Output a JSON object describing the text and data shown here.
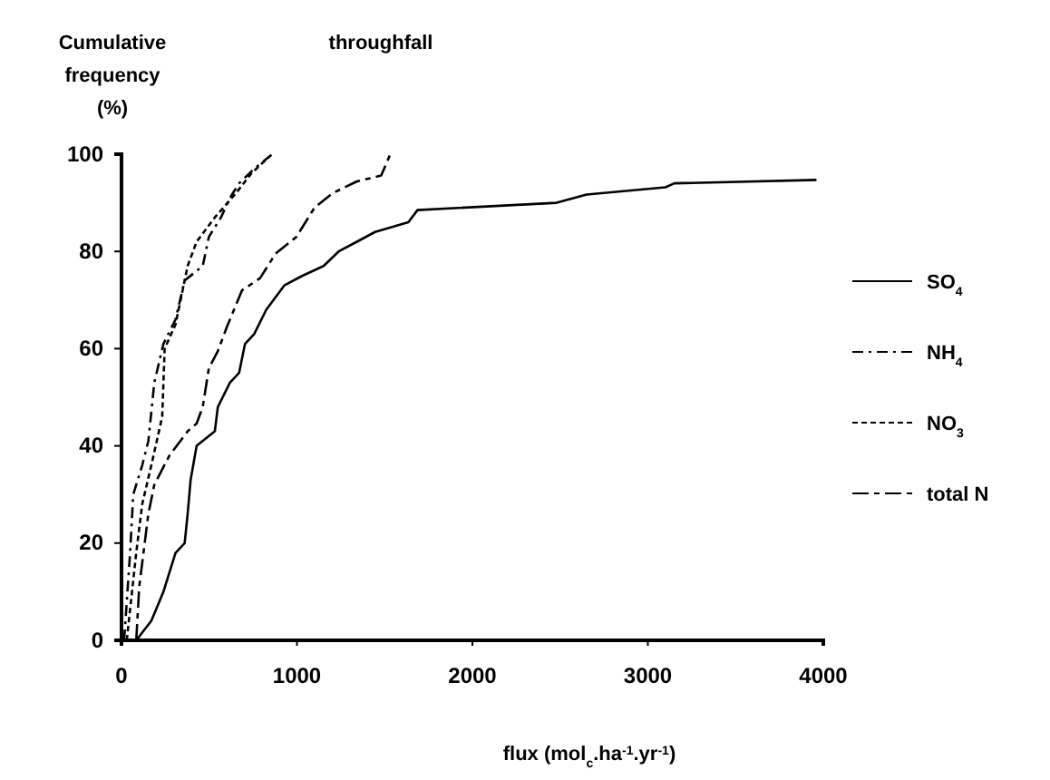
{
  "chart_data": {
    "type": "line",
    "title": "throughfall",
    "xlabel": "flux (mol$_{c}$.ha$^{-1}$.yr$^{-1}$)",
    "ylabel": "Cumulative frequency (%)",
    "xlim": [
      0,
      4000
    ],
    "xticks": [
      0,
      1000,
      2000,
      3000,
      4000
    ],
    "ylim": [
      0,
      100
    ],
    "yticks": [
      0,
      20,
      40,
      60,
      80,
      100
    ],
    "grid": false,
    "legend": "right",
    "marker": "none",
    "series": [
      {
        "name": "SO$_{4}$",
        "color": "#000000",
        "line_style": "solid",
        "x": [
          84,
          170,
          239,
          308,
          360,
          377,
          394,
          428,
          532,
          549,
          618,
          670,
          704,
          756,
          825,
          928,
          1032,
          1152,
          1238,
          1342,
          1445,
          1635,
          1687,
          2480,
          2651,
          3100,
          3151,
          3961
        ],
        "values": [
          0,
          4,
          10,
          18,
          20,
          26,
          33,
          40,
          43,
          48,
          53,
          55,
          61,
          63,
          68,
          73,
          75,
          77,
          80,
          82,
          84,
          86,
          88.5,
          90,
          91.7,
          93.2,
          94,
          94.7
        ]
      },
      {
        "name": "NH$_{4}$",
        "color": "#000000",
        "line_style": "dashdot",
        "x": [
          15,
          49,
          67,
          118,
          153,
          187,
          239,
          308,
          360,
          463,
          498,
          567,
          618,
          670,
          756,
          860
        ],
        "values": [
          0,
          18,
          30,
          36,
          41,
          53,
          61,
          66,
          74,
          77,
          83,
          87,
          91,
          94,
          97,
          100
        ]
      },
      {
        "name": "NO$_{3}$",
        "color": "#000000",
        "line_style": "dotted",
        "x": [
          30,
          84,
          118,
          170,
          232,
          246,
          308,
          377,
          428,
          532,
          653,
          739,
          842
        ],
        "values": [
          0,
          18,
          28,
          36,
          46,
          60,
          65,
          77,
          82,
          87,
          92,
          96,
          99.5
        ]
      },
      {
        "name": "total N",
        "color": "#000000",
        "line_style": "dashed",
        "x": [
          84,
          101,
          153,
          187,
          273,
          377,
          428,
          463,
          498,
          549,
          601,
          687,
          790,
          877,
          997,
          1100,
          1204,
          1342,
          1480,
          1532
        ],
        "values": [
          0,
          11,
          26,
          32,
          38,
          43,
          44.6,
          48,
          56,
          59.5,
          64.5,
          72,
          74.5,
          79.5,
          83,
          89,
          92,
          94.4,
          95.6,
          100
        ]
      }
    ]
  }
}
